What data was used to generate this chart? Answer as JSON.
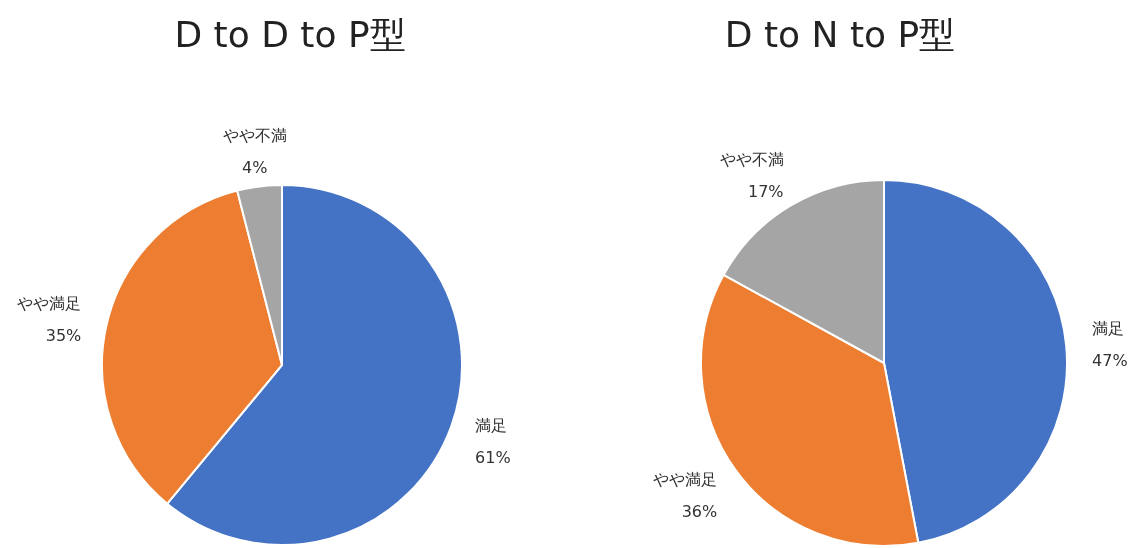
{
  "chart_data": [
    {
      "type": "pie",
      "title": "D to D to P型",
      "categories": [
        "満足",
        "やや満足",
        "やや不満"
      ],
      "values": [
        61,
        35,
        4
      ],
      "colors": [
        "#4472c4",
        "#ed7d31",
        "#a5a5a5"
      ],
      "value_labels": [
        "61%",
        "35%",
        "4%"
      ]
    },
    {
      "type": "pie",
      "title": "D to N to P型",
      "categories": [
        "満足",
        "やや満足",
        "やや不満"
      ],
      "values": [
        47,
        36,
        17
      ],
      "colors": [
        "#4472c4",
        "#ed7d31",
        "#a5a5a5"
      ],
      "value_labels": [
        "47%",
        "36%",
        "17%"
      ]
    }
  ]
}
